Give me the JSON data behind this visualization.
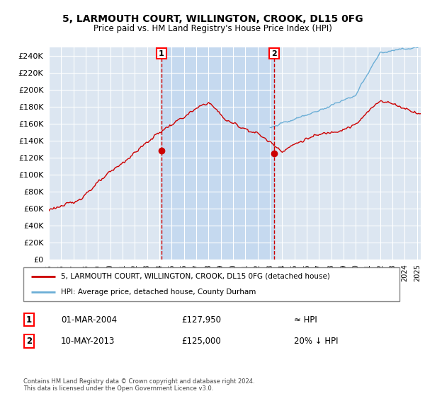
{
  "title1": "5, LARMOUTH COURT, WILLINGTON, CROOK, DL15 0FG",
  "title2": "Price paid vs. HM Land Registry's House Price Index (HPI)",
  "legend_line1": "5, LARMOUTH COURT, WILLINGTON, CROOK, DL15 0FG (detached house)",
  "legend_line2": "HPI: Average price, detached house, County Durham",
  "sale1_date": "01-MAR-2004",
  "sale1_price": "£127,950",
  "sale1_hpi": "≈ HPI",
  "sale2_date": "10-MAY-2013",
  "sale2_price": "£125,000",
  "sale2_hpi": "20% ↓ HPI",
  "footer": "Contains HM Land Registry data © Crown copyright and database right 2024.\nThis data is licensed under the Open Government Licence v3.0.",
  "hpi_color": "#6baed6",
  "sale_color": "#cc0000",
  "background_chart": "#dce6f1",
  "shade_color": "#c5d9ef",
  "grid_color": "#ffffff",
  "ylim": [
    0,
    250000
  ],
  "yticks": [
    0,
    20000,
    40000,
    60000,
    80000,
    100000,
    120000,
    140000,
    160000,
    180000,
    200000,
    220000,
    240000
  ],
  "sale1_x": 2004.17,
  "sale1_y": 127950,
  "sale2_x": 2013.36,
  "sale2_y": 125000,
  "vline1_x": 2004.17,
  "vline2_x": 2013.36,
  "xmin": 1995,
  "xmax": 2025.3
}
